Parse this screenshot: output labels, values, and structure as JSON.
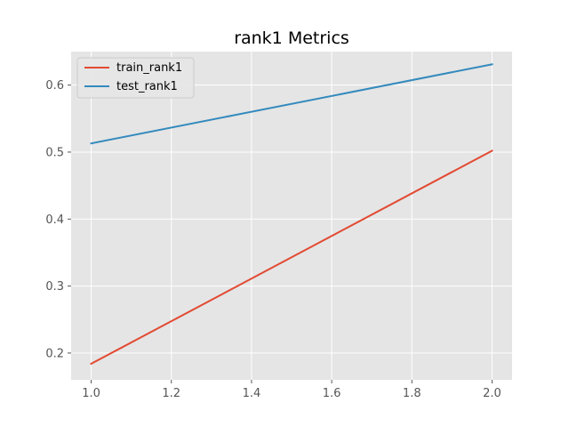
{
  "chart_data": {
    "type": "line",
    "title": "rank1 Metrics",
    "xlabel": "",
    "ylabel": "",
    "x": [
      1.0,
      2.0
    ],
    "series": [
      {
        "name": "train_rank1",
        "values": [
          0.184,
          0.502
        ],
        "color": "#e24a33"
      },
      {
        "name": "test_rank1",
        "values": [
          0.513,
          0.631
        ],
        "color": "#348abd"
      }
    ],
    "xlim": [
      0.95,
      2.05
    ],
    "ylim": [
      0.16,
      0.65
    ],
    "xticks": [
      "1.0",
      "1.2",
      "1.4",
      "1.6",
      "1.8",
      "2.0"
    ],
    "yticks": [
      "0.2",
      "0.3",
      "0.4",
      "0.5",
      "0.6"
    ],
    "grid": true,
    "legend_position": "upper-left",
    "background": "#e5e5e5",
    "grid_color": "#ffffff"
  }
}
